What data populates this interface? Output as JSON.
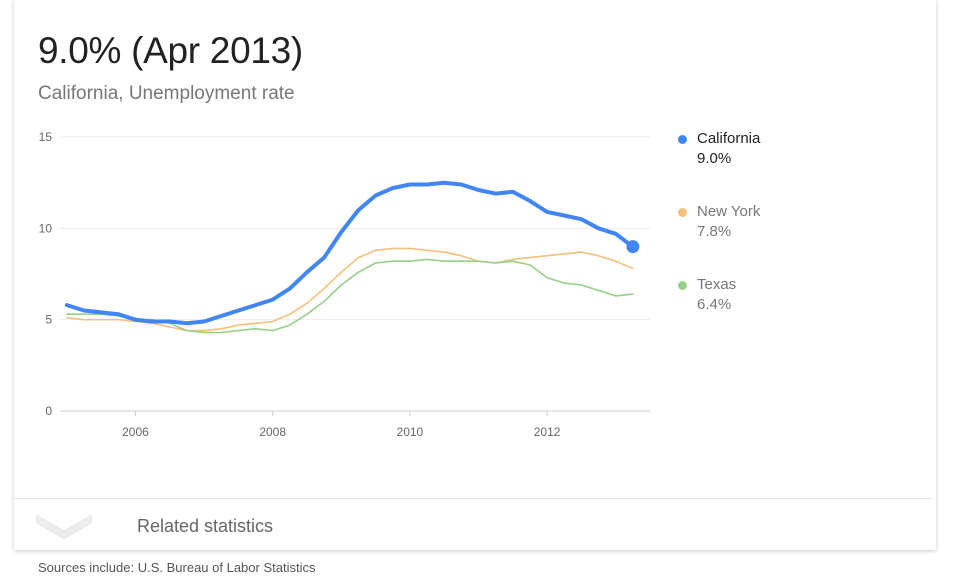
{
  "header": {
    "headline": "9.0% (Apr 2013)",
    "subtitle": "California, Unemployment rate"
  },
  "chart_data": {
    "type": "line",
    "ylim": [
      0,
      15
    ],
    "xlim": [
      2004.9,
      2013.5
    ],
    "y_ticks": [
      0,
      5,
      10,
      15
    ],
    "x_ticks": [
      2006,
      2008,
      2010,
      2012
    ],
    "grid": "horizontal",
    "legend_position": "right",
    "series": [
      {
        "name": "California",
        "value_label": "9.0%",
        "color": "#4285f4",
        "emphasis": true,
        "x": [
          2005.0,
          2005.25,
          2005.5,
          2005.75,
          2006.0,
          2006.25,
          2006.5,
          2006.75,
          2007.0,
          2007.25,
          2007.5,
          2007.75,
          2008.0,
          2008.25,
          2008.5,
          2008.75,
          2009.0,
          2009.25,
          2009.5,
          2009.75,
          2010.0,
          2010.25,
          2010.5,
          2010.75,
          2011.0,
          2011.25,
          2011.5,
          2011.75,
          2012.0,
          2012.25,
          2012.5,
          2012.75,
          2013.0,
          2013.25
        ],
        "values": [
          5.8,
          5.5,
          5.4,
          5.3,
          5.0,
          4.9,
          4.9,
          4.8,
          4.9,
          5.2,
          5.5,
          5.8,
          6.1,
          6.7,
          7.6,
          8.4,
          9.8,
          11.0,
          11.8,
          12.2,
          12.4,
          12.4,
          12.5,
          12.4,
          12.1,
          11.9,
          12.0,
          11.5,
          10.9,
          10.7,
          10.5,
          10.0,
          9.7,
          9.0
        ]
      },
      {
        "name": "New York",
        "value_label": "7.8%",
        "color": "#f6c07a",
        "emphasis": false,
        "x": [
          2005.0,
          2005.25,
          2005.5,
          2005.75,
          2006.0,
          2006.25,
          2006.5,
          2006.75,
          2007.0,
          2007.25,
          2007.5,
          2007.75,
          2008.0,
          2008.25,
          2008.5,
          2008.75,
          2009.0,
          2009.25,
          2009.5,
          2009.75,
          2010.0,
          2010.25,
          2010.5,
          2010.75,
          2011.0,
          2011.25,
          2011.5,
          2011.75,
          2012.0,
          2012.25,
          2012.5,
          2012.75,
          2013.0,
          2013.25
        ],
        "values": [
          5.1,
          5.0,
          5.0,
          5.0,
          4.9,
          4.8,
          4.6,
          4.4,
          4.4,
          4.5,
          4.7,
          4.8,
          4.9,
          5.3,
          5.9,
          6.7,
          7.6,
          8.4,
          8.8,
          8.9,
          8.9,
          8.8,
          8.7,
          8.5,
          8.2,
          8.1,
          8.3,
          8.4,
          8.5,
          8.6,
          8.7,
          8.5,
          8.2,
          7.8
        ]
      },
      {
        "name": "Texas",
        "value_label": "6.4%",
        "color": "#97d08a",
        "emphasis": false,
        "x": [
          2005.0,
          2005.25,
          2005.5,
          2005.75,
          2006.0,
          2006.25,
          2006.5,
          2006.75,
          2007.0,
          2007.25,
          2007.5,
          2007.75,
          2008.0,
          2008.25,
          2008.5,
          2008.75,
          2009.0,
          2009.25,
          2009.5,
          2009.75,
          2010.0,
          2010.25,
          2010.5,
          2010.75,
          2011.0,
          2011.25,
          2011.5,
          2011.75,
          2012.0,
          2012.25,
          2012.5,
          2012.75,
          2013.0,
          2013.25
        ],
        "values": [
          5.3,
          5.3,
          5.3,
          5.2,
          5.0,
          5.0,
          4.8,
          4.4,
          4.3,
          4.3,
          4.4,
          4.5,
          4.4,
          4.7,
          5.3,
          6.0,
          6.9,
          7.6,
          8.1,
          8.2,
          8.2,
          8.3,
          8.2,
          8.2,
          8.2,
          8.1,
          8.2,
          8.0,
          7.3,
          7.0,
          6.9,
          6.6,
          6.3,
          6.4
        ]
      }
    ]
  },
  "footer": {
    "related_label": "Related statistics",
    "sources": "Sources include: U.S. Bureau of Labor Statistics"
  }
}
